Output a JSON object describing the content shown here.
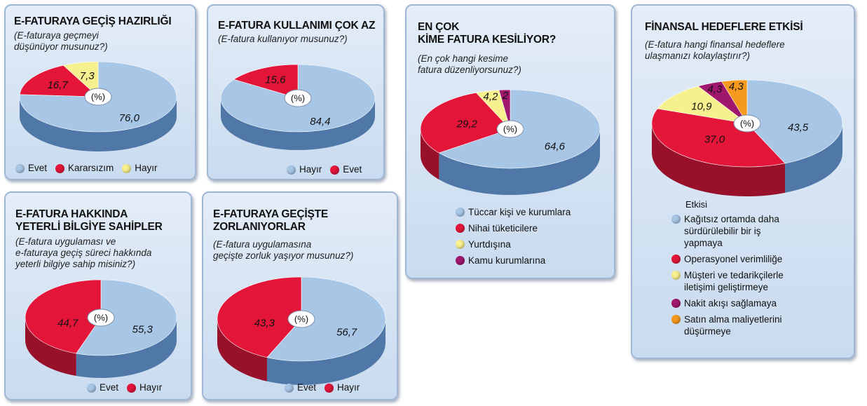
{
  "colors": {
    "light_blue": "#a8c6e6",
    "light_blue_side": "#4f78a8",
    "red": "#e3163a",
    "red_side": "#98102a",
    "yellow": "#f7f08e",
    "yellow_side": "#a89c3a",
    "purple": "#a0176e",
    "purple_side": "#5e0c40",
    "orange": "#f59a1c",
    "orange_side": "#a5620f"
  },
  "center_label": "(%)",
  "panels": [
    {
      "title": "E-FATURAYA GEÇİŞ HAZIRLIĞI",
      "subtitle": "(E-faturaya geçmeyi\ndüşünüyor musunuz?)",
      "legend": [
        "Evet",
        "Kararsızım",
        "Hayır"
      ]
    },
    {
      "title": "E-FATURA KULLANIMI ÇOK AZ",
      "subtitle": "(E-fatura kullanıyor musunuz?)",
      "legend": [
        "Hayır",
        "Evet"
      ]
    },
    {
      "title": "E-FATURA HAKKINDA\nYETERLİ BİLGİYE SAHİPLER",
      "subtitle": "(E-fatura uygulaması ve\ne-faturaya geçiş süreci hakkında\nyeterli bilgiye sahip misiniz?)",
      "legend": [
        "Evet",
        "Hayır"
      ]
    },
    {
      "title": "E-FATURAYA GEÇİŞTE\nZORLANIYORLAR",
      "subtitle": "(E-fatura uygulamasına\ngeçişte zorluk yaşıyor musunuz?)",
      "legend": [
        "Evet",
        "Hayır"
      ]
    },
    {
      "title": "EN ÇOK\nKİME FATURA KESİLİYOR?",
      "subtitle": "(En çok hangi kesime\nfatura düzenliyorsunuz?)",
      "legend": [
        "Tüccar kişi ve kurumlara",
        "Nihai tüketicilere",
        "Yurtdışına",
        "Kamu kurumlarına"
      ]
    },
    {
      "title": "FİNANSAL HEDEFLERE ETKİSİ",
      "subtitle": "(E-fatura hangi finansal hedeflere\nulaşmanızı kolaylaştırır?)",
      "legend_header": "Etkisi",
      "legend": [
        "Kağıtsız ortamda daha\nsürdürülebilir bir iş\nyapmaya",
        "Operasyonel verimliliğe",
        "Müşteri ve tedarikçilerle\niletişimi geliştirmeye",
        "Nakit akışı sağlamaya",
        "Satın alma maliyetlerini\ndüşürmeye"
      ]
    }
  ],
  "chart_data": [
    {
      "type": "pie",
      "title": "E-FATURAYA GEÇİŞ HAZIRLIĞI",
      "labels": [
        "Evet",
        "Kararsızım",
        "Hayır"
      ],
      "values": [
        76.0,
        16.7,
        7.3
      ],
      "display": [
        "76,0",
        "16,7",
        "7,3"
      ],
      "colors": [
        "light_blue",
        "red",
        "yellow"
      ],
      "unit": "(%)"
    },
    {
      "type": "pie",
      "title": "E-FATURA KULLANIMI ÇOK AZ",
      "labels": [
        "Hayır",
        "Evet"
      ],
      "values": [
        84.4,
        15.6
      ],
      "display": [
        "84,4",
        "15,6"
      ],
      "colors": [
        "light_blue",
        "red"
      ],
      "unit": "(%)"
    },
    {
      "type": "pie",
      "title": "E-FATURA HAKKINDA YETERLİ BİLGİYE SAHİPLER",
      "labels": [
        "Evet",
        "Hayır"
      ],
      "values": [
        55.3,
        44.7
      ],
      "display": [
        "55,3",
        "44,7"
      ],
      "colors": [
        "light_blue",
        "red"
      ],
      "unit": "(%)"
    },
    {
      "type": "pie",
      "title": "E-FATURAYA GEÇİŞTE ZORLANIYORLAR",
      "labels": [
        "Evet",
        "Hayır"
      ],
      "values": [
        56.7,
        43.3
      ],
      "display": [
        "56,7",
        "43,3"
      ],
      "colors": [
        "light_blue",
        "red"
      ],
      "unit": "(%)"
    },
    {
      "type": "pie",
      "title": "EN ÇOK KİME FATURA KESİLİYOR?",
      "labels": [
        "Tüccar kişi ve kurumlara",
        "Nihai tüketicilere",
        "Yurtdışına",
        "Kamu kurumlarına"
      ],
      "values": [
        64.6,
        29.2,
        4.2,
        2
      ],
      "display": [
        "64,6",
        "29,2",
        "4,2",
        "2"
      ],
      "colors": [
        "light_blue",
        "red",
        "yellow",
        "purple"
      ],
      "unit": "(%)"
    },
    {
      "type": "pie",
      "title": "FİNANSAL HEDEFLERE ETKİSİ",
      "labels": [
        "Kağıtsız ortamda daha sürdürülebilir bir iş yapmaya",
        "Operasyonel verimliliğe",
        "Müşteri ve tedarikçilerle iletişimi geliştirmeye",
        "Nakit akışı sağlamaya",
        "Satın alma maliyetlerini düşürmeye"
      ],
      "values": [
        43.5,
        37.0,
        10.9,
        4.3,
        4.3
      ],
      "display": [
        "43,5",
        "37,0",
        "10,9",
        "4,3",
        "4,3"
      ],
      "colors": [
        "light_blue",
        "red",
        "yellow",
        "purple",
        "orange"
      ],
      "unit": "(%)"
    }
  ]
}
